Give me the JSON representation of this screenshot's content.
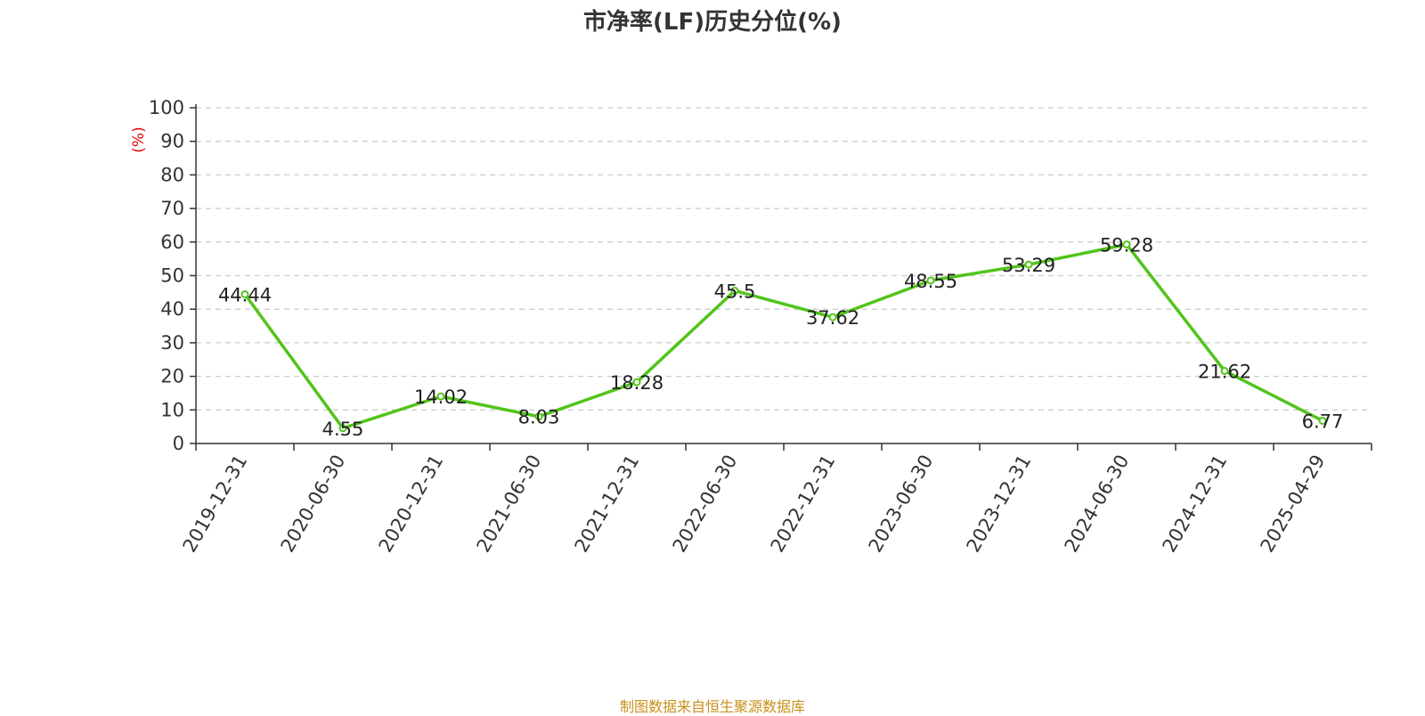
{
  "chart_data": {
    "type": "line",
    "title": "市净率(LF)历史分位(%)",
    "ylabel": "(%)",
    "xlabel": "",
    "categories": [
      "2019-12-31",
      "2020-06-30",
      "2020-12-31",
      "2021-06-30",
      "2021-12-31",
      "2022-06-30",
      "2022-12-31",
      "2023-06-30",
      "2023-12-31",
      "2024-06-30",
      "2024-12-31",
      "2025-04-29"
    ],
    "series": [
      {
        "values": [
          44.44,
          4.55,
          14.02,
          8.03,
          18.28,
          45.5,
          37.62,
          48.55,
          53.29,
          59.28,
          21.62,
          6.77
        ]
      }
    ],
    "data_labels": [
      "44.44",
      "4.55",
      "14.02",
      "8.03",
      "18.28",
      "45.5",
      "37.62",
      "48.55",
      "53.29",
      "59.28",
      "21.62",
      "6.77"
    ],
    "yticks": [
      "0",
      "10",
      "20",
      "30",
      "40",
      "50",
      "60",
      "70",
      "80",
      "90",
      "100"
    ],
    "ylim": [
      0,
      100
    ],
    "grid": "horizontal-dashed",
    "legend": "none"
  },
  "colors": {
    "line": "#52c41a",
    "axis": "#333333",
    "grid": "#cccccc",
    "ylabel": "#e60000",
    "source": "#c8901a"
  },
  "source_note": "制图数据来自恒生聚源数据库"
}
